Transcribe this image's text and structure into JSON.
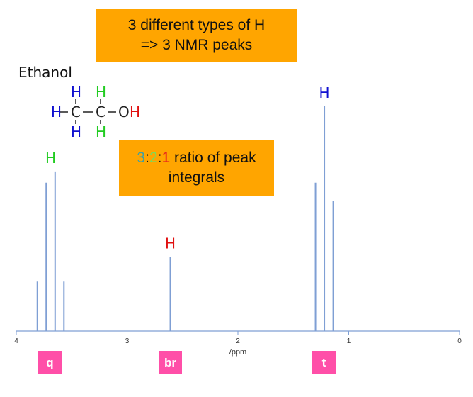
{
  "callouts": {
    "types": {
      "line1": "3 different types of H",
      "line2": "=> 3 NMR peaks"
    },
    "ratio": {
      "n1": "3",
      "sep1": ":",
      "n2": "2",
      "sep2": ":",
      "n3": "1",
      "rest": " ratio of peak",
      "line2": "integrals",
      "colors": {
        "n1": "#3aa0a8",
        "n2": "#7ed957",
        "n3": "#e8231e"
      }
    }
  },
  "molecule": {
    "name": "Ethanol",
    "atoms": {
      "h": "H",
      "c": "C",
      "o": "O"
    },
    "colors": {
      "methyl_h": "#1010d0",
      "methylene_h": "#22cc22",
      "hydroxyl_h": "#e01010",
      "bond": "#222222"
    }
  },
  "multiplicity": {
    "q": "q",
    "br": "br",
    "t": "t"
  },
  "chart_data": {
    "type": "line",
    "xlabel": "/ppm",
    "xlim": [
      4,
      0
    ],
    "xticks": [
      "4",
      "3",
      "2",
      "1",
      "0"
    ],
    "xtick_values": [
      4,
      3,
      2,
      1,
      0
    ],
    "line_color": "#7f9fd4",
    "series": [
      {
        "peaks": [
          {
            "x": 3.81,
            "height": 0.22
          },
          {
            "x": 3.73,
            "height": 0.66
          },
          {
            "x": 3.65,
            "height": 0.71
          },
          {
            "x": 3.57,
            "height": 0.22
          }
        ]
      },
      {
        "peaks": [
          {
            "x": 2.61,
            "height": 0.33
          }
        ]
      },
      {
        "peaks": [
          {
            "x": 1.3,
            "height": 0.66
          },
          {
            "x": 1.22,
            "height": 1.0
          },
          {
            "x": 1.14,
            "height": 0.58
          }
        ]
      }
    ],
    "peak_labels": [
      {
        "text": "H",
        "x": 3.69,
        "at_height": 0.71,
        "color": "#22cc22"
      },
      {
        "text": "H",
        "x": 2.61,
        "at_height": 0.33,
        "color": "#e01010"
      },
      {
        "text": "H",
        "x": 1.22,
        "at_height": 1.0,
        "color": "#1010d0"
      }
    ]
  }
}
